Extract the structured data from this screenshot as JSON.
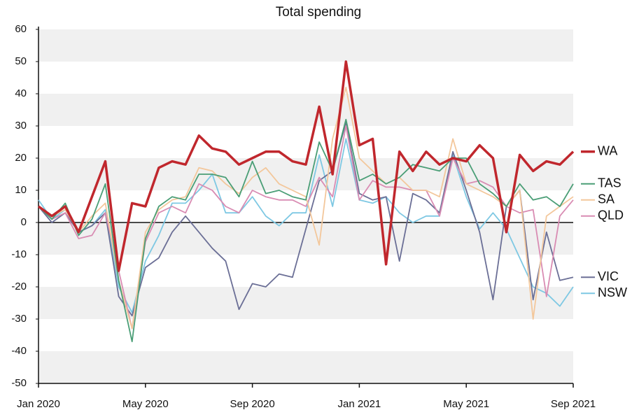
{
  "chart_data": {
    "type": "line",
    "title": "Total spending",
    "categories": [
      "Jan 2020",
      null,
      null,
      null,
      null,
      null,
      null,
      null,
      "May 2020",
      null,
      null,
      null,
      null,
      null,
      null,
      null,
      "Sep 2020",
      null,
      null,
      null,
      null,
      null,
      null,
      null,
      "Jan 2021",
      null,
      null,
      null,
      null,
      null,
      null,
      null,
      "May 2021",
      null,
      null,
      null,
      null,
      null,
      null,
      null,
      "Sep 2021"
    ],
    "ylim": [
      -50,
      60
    ],
    "yticks": [
      -50,
      -40,
      -30,
      -20,
      -10,
      0,
      10,
      20,
      30,
      40,
      50,
      60
    ],
    "series": [
      {
        "name": "WA",
        "color": "#c0272d",
        "values": [
          5,
          2,
          5,
          -3,
          8,
          19,
          -15,
          6,
          5,
          17,
          19,
          18,
          27,
          23,
          22,
          18,
          20,
          22,
          22,
          19,
          18,
          36,
          15,
          50,
          24,
          26,
          -13,
          22,
          16,
          22,
          18,
          20,
          19,
          24,
          20,
          -3,
          21,
          16,
          19,
          18,
          22
        ]
      },
      {
        "name": "TAS",
        "color": "#4a9e76",
        "values": [
          5,
          1,
          6,
          -4,
          1,
          12,
          -18,
          -37,
          -5,
          5,
          8,
          7,
          15,
          15,
          14,
          8,
          19,
          9,
          10,
          8,
          7,
          25,
          16,
          32,
          13,
          15,
          12,
          14,
          18,
          17,
          16,
          20,
          20,
          12,
          9,
          5,
          12,
          7,
          8,
          5,
          12
        ]
      },
      {
        "name": "SA",
        "color": "#f3c79b",
        "values": [
          5,
          2,
          4,
          -3,
          2,
          6,
          -18,
          -33,
          -3,
          4,
          7,
          8,
          17,
          16,
          12,
          9,
          14,
          17,
          12,
          10,
          8,
          -7,
          26,
          42,
          20,
          16,
          12,
          14,
          10,
          10,
          8,
          26,
          12,
          10,
          8,
          5,
          10,
          -30,
          2,
          5,
          8
        ]
      },
      {
        "name": "QLD",
        "color": "#d98cb3",
        "values": [
          5,
          1,
          3,
          -5,
          -4,
          3,
          -15,
          -33,
          -6,
          3,
          5,
          3,
          12,
          10,
          5,
          3,
          10,
          8,
          7,
          7,
          5,
          14,
          8,
          30,
          7,
          13,
          11,
          11,
          10,
          10,
          2,
          20,
          12,
          13,
          11,
          5,
          3,
          4,
          -23,
          2,
          7
        ]
      },
      {
        "name": "VIC",
        "color": "#6b6f96",
        "values": [
          5,
          0,
          3,
          -3,
          -1,
          3,
          -23,
          -29,
          -14,
          -11,
          -3,
          2,
          -3,
          -8,
          -12,
          -27,
          -19,
          -20,
          -16,
          -17,
          -2,
          13,
          16,
          31,
          9,
          7,
          8,
          -12,
          9,
          7,
          3,
          22,
          10,
          -3,
          -24,
          5,
          10,
          -24,
          -3,
          -18,
          -17
        ]
      },
      {
        "name": "NSW",
        "color": "#7ec8e3",
        "values": [
          7,
          1,
          4,
          -3,
          -1,
          4,
          -20,
          -28,
          -12,
          -4,
          6,
          6,
          10,
          15,
          3,
          3,
          8,
          2,
          -1,
          3,
          3,
          21,
          5,
          26,
          7,
          6,
          8,
          3,
          0,
          2,
          2,
          21,
          8,
          -2,
          3,
          -2,
          -11,
          -20,
          -22,
          -26,
          -20
        ]
      }
    ]
  }
}
